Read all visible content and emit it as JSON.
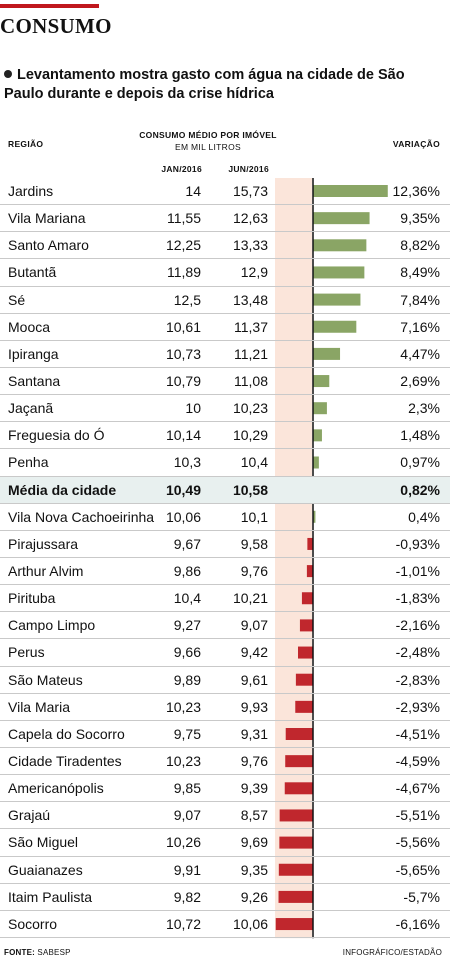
{
  "header": {
    "title": "CONSUMO",
    "subtitle": "Levantamento mostra gasto com água na cidade de São Paulo durante e depois da crise hídrica",
    "col_region": "REGIÃO",
    "col_consumption": "CONSUMO MÉDIO POR IMÓVEL",
    "col_units": "EM MIL LITROS",
    "col_jan": "JAN/2016",
    "col_jun": "JUN/2016",
    "col_variation": "VARIAÇÃO"
  },
  "footer": {
    "source_label": "FONTE:",
    "source_value": "SABESP",
    "credit": "INFOGRÁFICO/ESTADÃO"
  },
  "colors": {
    "positive": "#8aa565",
    "negative": "#c0272d",
    "zero_band": "#fbe5da",
    "highlight_row": "#e8f0ef",
    "accent": "#c0171d"
  },
  "chart_data": {
    "type": "bar",
    "highlight_row": "Média da cidade",
    "rows": [
      {
        "region": "Jardins",
        "jan": "14",
        "jun": "15,73",
        "pct_label": "12,36%",
        "pct": 12.36
      },
      {
        "region": "Vila Mariana",
        "jan": "11,55",
        "jun": "12,63",
        "pct_label": "9,35%",
        "pct": 9.35
      },
      {
        "region": "Santo Amaro",
        "jan": "12,25",
        "jun": "13,33",
        "pct_label": "8,82%",
        "pct": 8.82
      },
      {
        "region": "Butantã",
        "jan": "11,89",
        "jun": "12,9",
        "pct_label": "8,49%",
        "pct": 8.49
      },
      {
        "region": "Sé",
        "jan": "12,5",
        "jun": "13,48",
        "pct_label": "7,84%",
        "pct": 7.84
      },
      {
        "region": "Mooca",
        "jan": "10,61",
        "jun": "11,37",
        "pct_label": "7,16%",
        "pct": 7.16
      },
      {
        "region": "Ipiranga",
        "jan": "10,73",
        "jun": "11,21",
        "pct_label": "4,47%",
        "pct": 4.47
      },
      {
        "region": "Santana",
        "jan": "10,79",
        "jun": "11,08",
        "pct_label": "2,69%",
        "pct": 2.69
      },
      {
        "region": "Jaçanã",
        "jan": "10",
        "jun": "10,23",
        "pct_label": "2,3%",
        "pct": 2.3
      },
      {
        "region": "Freguesia do Ó",
        "jan": "10,14",
        "jun": "10,29",
        "pct_label": "1,48%",
        "pct": 1.48
      },
      {
        "region": "Penha",
        "jan": "10,3",
        "jun": "10,4",
        "pct_label": "0,97%",
        "pct": 0.97
      },
      {
        "region": "Média da cidade",
        "jan": "10,49",
        "jun": "10,58",
        "pct_label": "0,82%",
        "pct": 0.82
      },
      {
        "region": "Vila Nova Cachoeirinha",
        "jan": "10,06",
        "jun": "10,1",
        "pct_label": "0,4%",
        "pct": 0.4
      },
      {
        "region": "Pirajussara",
        "jan": "9,67",
        "jun": "9,58",
        "pct_label": "-0,93%",
        "pct": -0.93
      },
      {
        "region": "Arthur Alvim",
        "jan": "9,86",
        "jun": "9,76",
        "pct_label": "-1,01%",
        "pct": -1.01
      },
      {
        "region": "Pirituba",
        "jan": "10,4",
        "jun": "10,21",
        "pct_label": "-1,83%",
        "pct": -1.83
      },
      {
        "region": "Campo Limpo",
        "jan": "9,27",
        "jun": "9,07",
        "pct_label": "-2,16%",
        "pct": -2.16
      },
      {
        "region": "Perus",
        "jan": "9,66",
        "jun": "9,42",
        "pct_label": "-2,48%",
        "pct": -2.48
      },
      {
        "region": "São Mateus",
        "jan": "9,89",
        "jun": "9,61",
        "pct_label": "-2,83%",
        "pct": -2.83
      },
      {
        "region": "Vila Maria",
        "jan": "10,23",
        "jun": "9,93",
        "pct_label": "-2,93%",
        "pct": -2.93
      },
      {
        "region": "Capela do Socorro",
        "jan": "9,75",
        "jun": "9,31",
        "pct_label": "-4,51%",
        "pct": -4.51
      },
      {
        "region": "Cidade Tiradentes",
        "jan": "10,23",
        "jun": "9,76",
        "pct_label": "-4,59%",
        "pct": -4.59
      },
      {
        "region": "Americanópolis",
        "jan": "9,85",
        "jun": "9,39",
        "pct_label": "-4,67%",
        "pct": -4.67
      },
      {
        "region": "Grajaú",
        "jan": "9,07",
        "jun": "8,57",
        "pct_label": "-5,51%",
        "pct": -5.51
      },
      {
        "region": "São Miguel",
        "jan": "10,26",
        "jun": "9,69",
        "pct_label": "-5,56%",
        "pct": -5.56
      },
      {
        "region": "Guaianazes",
        "jan": "9,91",
        "jun": "9,35",
        "pct_label": "-5,65%",
        "pct": -5.65
      },
      {
        "region": "Itaim Paulista",
        "jan": "9,82",
        "jun": "9,26",
        "pct_label": "-5,7%",
        "pct": -5.7
      },
      {
        "region": "Socorro",
        "jan": "10,72",
        "jun": "10,06",
        "pct_label": "-6,16%",
        "pct": -6.16
      }
    ]
  }
}
